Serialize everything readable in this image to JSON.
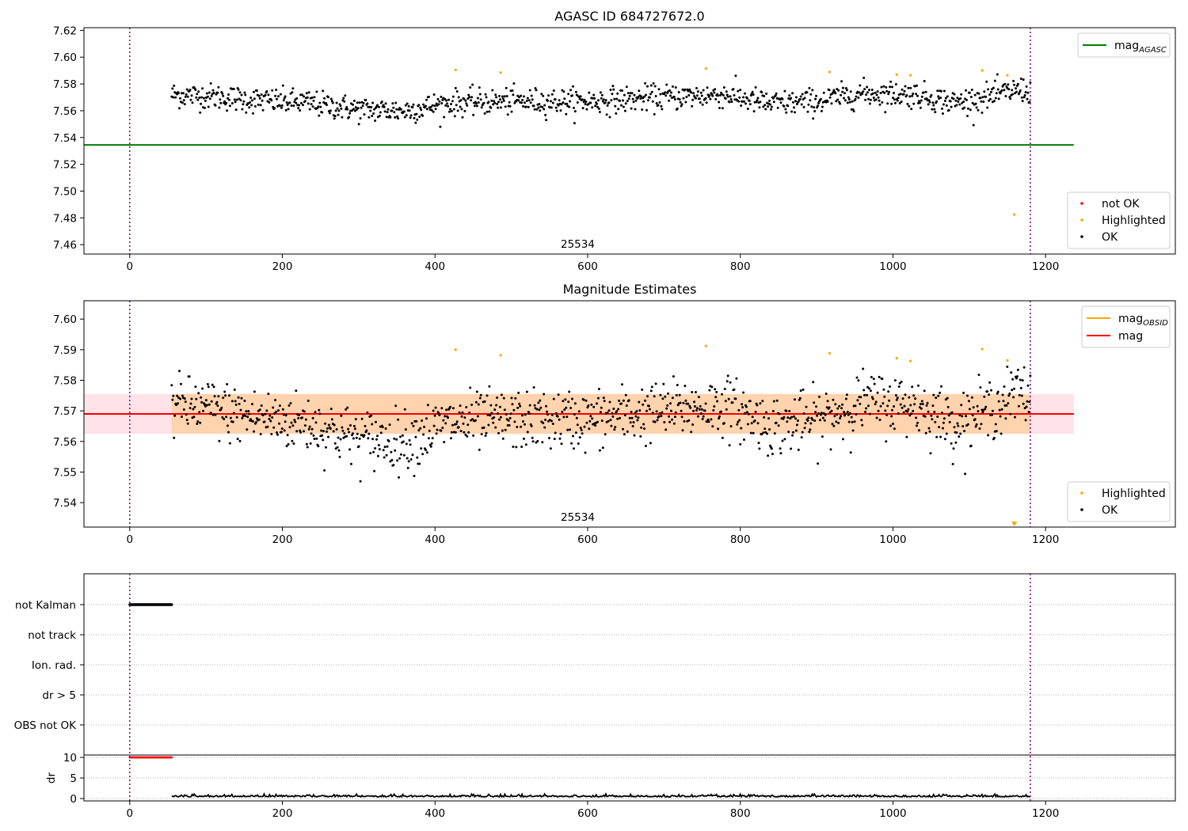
{
  "chart_data": [
    {
      "type": "scatter",
      "title": "AGASC ID 684727672.0",
      "xlim": [
        -60,
        1370
      ],
      "ylim": [
        7.453,
        7.622
      ],
      "xticks": [
        0,
        200,
        400,
        600,
        800,
        1000,
        1200
      ],
      "xtick_labels": [
        "0",
        "200",
        "400",
        "600",
        "800",
        "1000",
        "1200"
      ],
      "yticks": [
        7.46,
        7.48,
        7.5,
        7.52,
        7.54,
        7.56,
        7.58,
        7.6,
        7.62
      ],
      "ytick_labels": [
        "7.46",
        "7.48",
        "7.50",
        "7.52",
        "7.54",
        "7.56",
        "7.58",
        "7.60",
        "7.62"
      ],
      "obsid_label": "25534",
      "obsid_label_x": 587,
      "obs_boundaries": [
        0,
        1180
      ],
      "reference_lines": [
        {
          "name": "mag_AGASC",
          "y": 7.5345,
          "x_range": [
            -60,
            1237
          ],
          "color": "#008000"
        }
      ],
      "series": [
        {
          "name": "not OK",
          "color": "#ff0000",
          "points": []
        },
        {
          "name": "Highlighted",
          "color": "#ffa500",
          "points": [
            [
              427,
              7.5905
            ],
            [
              486,
              7.5885
            ],
            [
              755,
              7.5915
            ],
            [
              917,
              7.589
            ],
            [
              1005,
              7.587
            ],
            [
              1023,
              7.5865
            ],
            [
              1117,
              7.59
            ],
            [
              1150,
              7.5865
            ],
            [
              1159,
              7.4825
            ]
          ]
        },
        {
          "name": "OK",
          "color": "#000000",
          "x_start": 55,
          "x_end": 1180,
          "n_points": 1120,
          "trend": [
            [
              55,
              7.572
            ],
            [
              100,
              7.571
            ],
            [
              160,
              7.568
            ],
            [
              230,
              7.566
            ],
            [
              300,
              7.561
            ],
            [
              360,
              7.56
            ],
            [
              420,
              7.566
            ],
            [
              500,
              7.567
            ],
            [
              600,
              7.567
            ],
            [
              700,
              7.57
            ],
            [
              780,
              7.572
            ],
            [
              840,
              7.565
            ],
            [
              900,
              7.567
            ],
            [
              960,
              7.573
            ],
            [
              1030,
              7.572
            ],
            [
              1080,
              7.566
            ],
            [
              1130,
              7.571
            ],
            [
              1165,
              7.576
            ],
            [
              1180,
              7.574
            ]
          ]
        }
      ],
      "legend_lines": [
        {
          "label": "mag",
          "sub": "AGASC",
          "color": "#008000"
        }
      ],
      "legend_points": [
        {
          "label": "not OK",
          "color": "#ff0000"
        },
        {
          "label": "Highlighted",
          "color": "#ffa500"
        },
        {
          "label": "OK",
          "color": "#000000"
        }
      ]
    },
    {
      "type": "scatter",
      "title": "Magnitude Estimates",
      "xlim": [
        -60,
        1370
      ],
      "ylim": [
        7.532,
        7.606
      ],
      "xticks": [
        0,
        200,
        400,
        600,
        800,
        1000,
        1200
      ],
      "xtick_labels": [
        "0",
        "200",
        "400",
        "600",
        "800",
        "1000",
        "1200"
      ],
      "yticks": [
        7.54,
        7.55,
        7.56,
        7.57,
        7.58,
        7.59,
        7.6
      ],
      "ytick_labels": [
        "7.54",
        "7.55",
        "7.56",
        "7.57",
        "7.58",
        "7.59",
        "7.60"
      ],
      "obsid_label": "25534",
      "obsid_label_x": 587,
      "obs_boundaries": [
        0,
        1180
      ],
      "bands": [
        {
          "y_range": [
            7.5625,
            7.5755
          ],
          "x_range": [
            -60,
            1237
          ],
          "color": "#ffc0cb",
          "opacity": 0.45
        },
        {
          "y_range": [
            7.5625,
            7.5755
          ],
          "x_range": [
            55,
            1180
          ],
          "color": "#ffa500",
          "opacity": 0.25
        }
      ],
      "reference_lines": [
        {
          "name": "mag_OBSID",
          "y": 7.569,
          "x_range": [
            55,
            1180
          ],
          "color": "#ffa500"
        },
        {
          "name": "mag",
          "y": 7.569,
          "x_range": [
            -60,
            1237
          ],
          "color": "#ff0000"
        }
      ],
      "series": [
        {
          "name": "Highlighted",
          "color": "#ffa500",
          "points": [
            [
              427,
              7.59
            ],
            [
              486,
              7.5882
            ],
            [
              755,
              7.5912
            ],
            [
              917,
              7.5888
            ],
            [
              1005,
              7.5872
            ],
            [
              1023,
              7.5863
            ],
            [
              1117,
              7.5902
            ],
            [
              1150,
              7.5865
            ]
          ],
          "offscale_marker": [
            1159,
            7.533
          ]
        },
        {
          "name": "OK",
          "color": "#000000",
          "x_start": 55,
          "x_end": 1180,
          "n_points": 1120,
          "trend": [
            [
              55,
              7.572
            ],
            [
              100,
              7.571
            ],
            [
              160,
              7.568
            ],
            [
              230,
              7.566
            ],
            [
              300,
              7.561
            ],
            [
              360,
              7.56
            ],
            [
              420,
              7.566
            ],
            [
              500,
              7.567
            ],
            [
              600,
              7.567
            ],
            [
              700,
              7.57
            ],
            [
              780,
              7.572
            ],
            [
              840,
              7.565
            ],
            [
              900,
              7.567
            ],
            [
              960,
              7.573
            ],
            [
              1030,
              7.572
            ],
            [
              1080,
              7.566
            ],
            [
              1130,
              7.571
            ],
            [
              1165,
              7.576
            ],
            [
              1180,
              7.574
            ]
          ]
        }
      ],
      "legend_lines": [
        {
          "label": "mag",
          "sub": "OBSID",
          "color": "#ffa500"
        },
        {
          "label": "mag",
          "sub": "",
          "color": "#ff0000"
        }
      ],
      "legend_points": [
        {
          "label": "Highlighted",
          "color": "#ffa500"
        },
        {
          "label": "OK",
          "color": "#000000"
        }
      ]
    },
    {
      "type": "scatter",
      "title": "",
      "xlim": [
        -60,
        1370
      ],
      "flag_categories": [
        "not Kalman",
        "not track",
        "Ion. rad.",
        "dr > 5",
        "OBS not OK"
      ],
      "flags": [
        {
          "category": "not Kalman",
          "x_range": [
            0,
            55
          ],
          "n_points": 60,
          "color": "#000000"
        }
      ],
      "obs_boundaries": [
        0,
        1180
      ],
      "dr_panel": {
        "ylabel": "dr",
        "yticks": [
          0,
          5,
          10
        ],
        "ytick_labels": [
          "0",
          "5",
          "10"
        ],
        "ylim": [
          -1,
          11
        ],
        "capped_series": {
          "x_range": [
            0,
            55
          ],
          "y": 10,
          "color": "#ff0000"
        },
        "line_series": {
          "x_range": [
            55,
            1180
          ],
          "color": "#000000",
          "typical_value": 0.4,
          "max_value": 1.1
        }
      },
      "xticks": [
        0,
        200,
        400,
        600,
        800,
        1000,
        1200
      ],
      "xtick_labels": [
        "0",
        "200",
        "400",
        "600",
        "800",
        "1000",
        "1200"
      ]
    }
  ]
}
